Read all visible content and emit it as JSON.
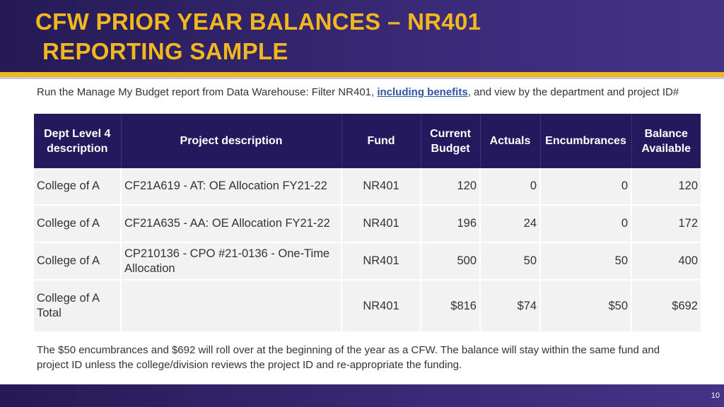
{
  "title": {
    "line1": "CFW PRIOR YEAR BALANCES – NR401",
    "line2": "REPORTING SAMPLE"
  },
  "intro": {
    "before": "Run the Manage My Budget report from Data Warehouse: Filter NR401, ",
    "link": "including benefits",
    "after": ", and view by the department and project ID#"
  },
  "table": {
    "headers": {
      "dept": "Dept Level 4 description",
      "project": "Project description",
      "fund": "Fund",
      "budget": "Current Budget",
      "actuals": "Actuals",
      "encumbrances": "Encumbrances",
      "balance": "Balance Available"
    },
    "rows": [
      {
        "dept": "College of A",
        "project": "CF21A619 - AT: OE Allocation FY21-22",
        "fund": "NR401",
        "budget": "120",
        "actuals": "0",
        "encumbrances": "0",
        "balance": "120"
      },
      {
        "dept": "College of A",
        "project": "CF21A635 - AA: OE Allocation FY21-22",
        "fund": "NR401",
        "budget": "196",
        "actuals": "24",
        "encumbrances": "0",
        "balance": "172"
      },
      {
        "dept": "College of A",
        "project": "CP210136 - CPO #21-0136 - One-Time Allocation",
        "fund": "NR401",
        "budget": "500",
        "actuals": "50",
        "encumbrances": "50",
        "balance": "400"
      },
      {
        "dept": "College of A Total",
        "project": "",
        "fund": "NR401",
        "budget": "$816",
        "actuals": "$74",
        "encumbrances": "$50",
        "balance": "$692"
      }
    ]
  },
  "note": "The $50 encumbrances and $692 will roll over at the beginning of the year as a CFW. The balance will stay within the same fund and project ID unless the college/division reviews the project ID and re-appropriate the funding.",
  "page_number": "10",
  "colors": {
    "header_bg": "#2e2166",
    "title_gold": "#f2b71e",
    "table_header": "#24195c",
    "cell_bg": "#f2f2f2",
    "link": "#2f55a4"
  }
}
